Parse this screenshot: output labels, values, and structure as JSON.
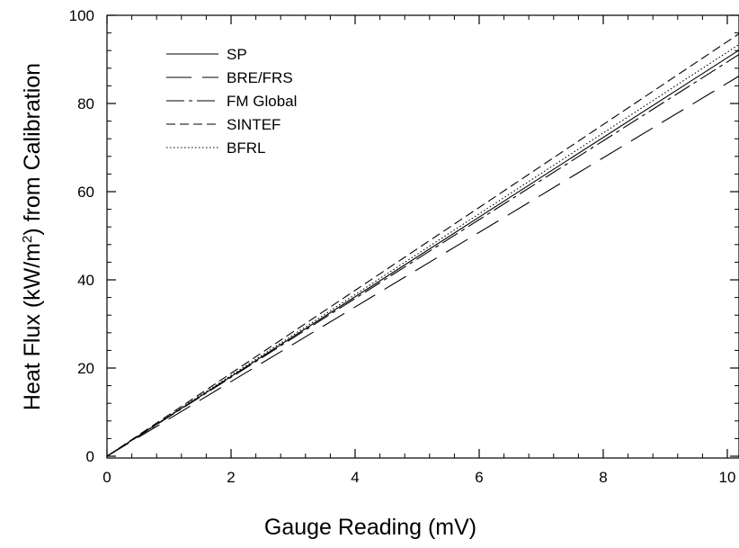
{
  "chart_data": {
    "type": "line",
    "title": "",
    "xlabel": "Gauge Reading (mV)",
    "ylabel_prefix": "Heat Flux (kW/m",
    "ylabel_sup": "2",
    "ylabel_suffix": ") from Calibration",
    "xlim": [
      0,
      10.4
    ],
    "ylim": [
      0,
      100
    ],
    "x_ticks": [
      0,
      2,
      4,
      6,
      8,
      10
    ],
    "x_tick_labels": [
      "0",
      "2",
      "4",
      "6",
      "8",
      "10"
    ],
    "y_ticks": [
      0,
      20,
      40,
      60,
      80,
      100
    ],
    "y_tick_labels": [
      "0",
      "20",
      "40",
      "60",
      "80",
      "100"
    ],
    "minor_x_step": 0.4,
    "minor_y_step": 4,
    "grid": false,
    "legend_position": "top-left",
    "series": [
      {
        "name": "SP",
        "dash": "solid",
        "points": [
          [
            0,
            0
          ],
          [
            10.4,
            94.0
          ]
        ]
      },
      {
        "name": "BRE/FRS",
        "dash": "long-dash",
        "points": [
          [
            0,
            0
          ],
          [
            10.4,
            88.0
          ]
        ]
      },
      {
        "name": "FM Global",
        "dash": "dash-dot",
        "points": [
          [
            0,
            0
          ],
          [
            10.4,
            93.0
          ]
        ]
      },
      {
        "name": "SINTEF",
        "dash": "dash",
        "points": [
          [
            0,
            0
          ],
          [
            10.4,
            97.8
          ]
        ]
      },
      {
        "name": "BFRL",
        "dash": "dot",
        "points": [
          [
            0,
            0
          ],
          [
            10.4,
            95.3
          ]
        ]
      }
    ]
  }
}
